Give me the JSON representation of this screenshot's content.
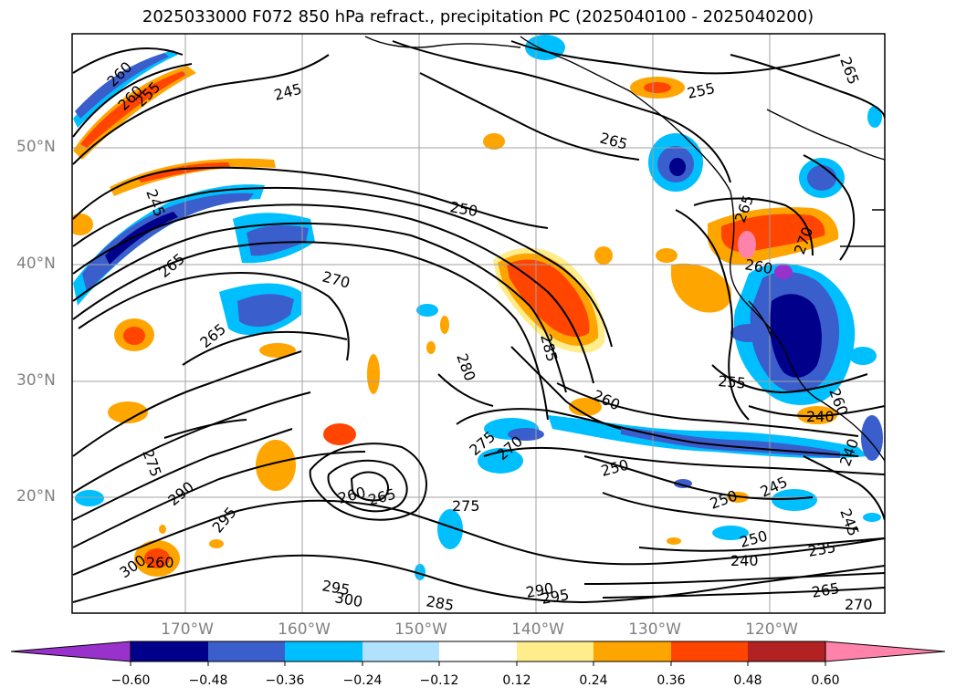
{
  "title": "2025033000 F072 850 hPa refract., precipitation PC (2025040100 - 2025040200)",
  "lat_labels": [
    "50°N",
    "40°N",
    "30°N",
    "20°N"
  ],
  "lon_labels": [
    "170°W",
    "160°W",
    "150°W",
    "140°W",
    "130°W",
    "120°W"
  ],
  "colorbar": {
    "ticks": [
      "−0.60",
      "−0.48",
      "−0.36",
      "−0.24",
      "−0.12",
      "0.12",
      "0.24",
      "0.36",
      "0.48",
      "0.60"
    ],
    "colors": {
      "under": "#9932cc",
      "bins": [
        "#00008b",
        "#3a5fcd",
        "#00bfff",
        "#b0e2ff",
        "#ffffff",
        "#ffec8b",
        "#ffa500",
        "#ff4500",
        "#b22222",
        "#ff82ab"
      ],
      "over": "#ff82ab"
    }
  },
  "contour_labels": [
    "260",
    "260",
    "255",
    "245",
    "255",
    "265",
    "265",
    "245",
    "250",
    "265",
    "270",
    "265",
    "285",
    "280",
    "260",
    "255",
    "275",
    "270",
    "250",
    "275",
    "290",
    "295",
    "260",
    "265",
    "275",
    "250",
    "245",
    "250",
    "240",
    "235",
    "245",
    "240",
    "240",
    "300",
    "295",
    "300",
    "285",
    "290",
    "295",
    "270",
    "260",
    "260",
    "265",
    "260",
    "265",
    "270"
  ]
}
